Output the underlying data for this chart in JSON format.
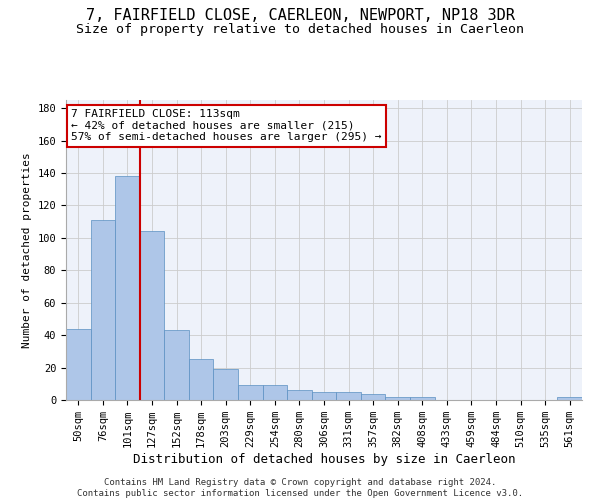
{
  "title1": "7, FAIRFIELD CLOSE, CAERLEON, NEWPORT, NP18 3DR",
  "title2": "Size of property relative to detached houses in Caerleon",
  "xlabel": "Distribution of detached houses by size in Caerleon",
  "ylabel": "Number of detached properties",
  "categories": [
    "50sqm",
    "76sqm",
    "101sqm",
    "127sqm",
    "152sqm",
    "178sqm",
    "203sqm",
    "229sqm",
    "254sqm",
    "280sqm",
    "306sqm",
    "331sqm",
    "357sqm",
    "382sqm",
    "408sqm",
    "433sqm",
    "459sqm",
    "484sqm",
    "510sqm",
    "535sqm",
    "561sqm"
  ],
  "values": [
    44,
    111,
    138,
    104,
    43,
    25,
    19,
    9,
    9,
    6,
    5,
    5,
    4,
    2,
    2,
    0,
    0,
    0,
    0,
    0,
    2
  ],
  "bar_color": "#aec6e8",
  "bar_edge_color": "#5a8fc2",
  "redline_x": 2.5,
  "annotation_line1": "7 FAIRFIELD CLOSE: 113sqm",
  "annotation_line2": "← 42% of detached houses are smaller (215)",
  "annotation_line3": "57% of semi-detached houses are larger (295) →",
  "redline_color": "#cc0000",
  "annotation_box_color": "#ffffff",
  "annotation_box_edge": "#cc0000",
  "footer_line1": "Contains HM Land Registry data © Crown copyright and database right 2024.",
  "footer_line2": "Contains public sector information licensed under the Open Government Licence v3.0.",
  "ylim": [
    0,
    185
  ],
  "yticks": [
    0,
    20,
    40,
    60,
    80,
    100,
    120,
    140,
    160,
    180
  ],
  "bg_color": "#eef2fa",
  "grid_color": "#cccccc",
  "title1_fontsize": 11,
  "title2_fontsize": 9.5,
  "xlabel_fontsize": 9,
  "ylabel_fontsize": 8,
  "tick_fontsize": 7.5,
  "annotation_fontsize": 8,
  "footer_fontsize": 6.5
}
